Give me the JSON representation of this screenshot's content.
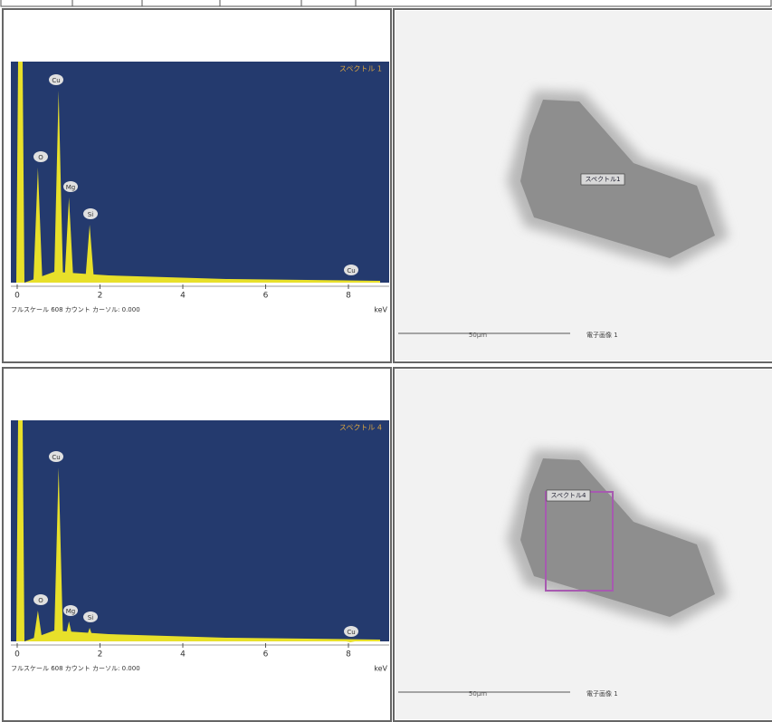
{
  "table": {
    "rows": [
      {
        "spectrum": {
          "title": "スペクトル 1",
          "peaks": [
            "O",
            "Cu",
            "Mg",
            "Si",
            "Cu"
          ],
          "axis_ticks": [
            "0",
            "2",
            "4",
            "6",
            "8"
          ],
          "unit": "keV",
          "footer": "フルスケール 608 カウント カーソル: 0.000"
        },
        "image": {
          "region_label": "スペクトル1",
          "scale": "50µm",
          "caption": "電子画像 1"
        }
      },
      {
        "spectrum": {
          "title": "スペクトル 4",
          "peaks": [
            "O",
            "Cu",
            "Mg",
            "Si",
            "Cu"
          ],
          "axis_ticks": [
            "0",
            "2",
            "4",
            "6",
            "8"
          ],
          "unit": "keV",
          "footer": "フルスケール 608 カウント カーソル: 0.000"
        },
        "image": {
          "region_label": "スペクトル4",
          "scale": "50µm",
          "caption": "電子画像 1"
        }
      }
    ]
  }
}
